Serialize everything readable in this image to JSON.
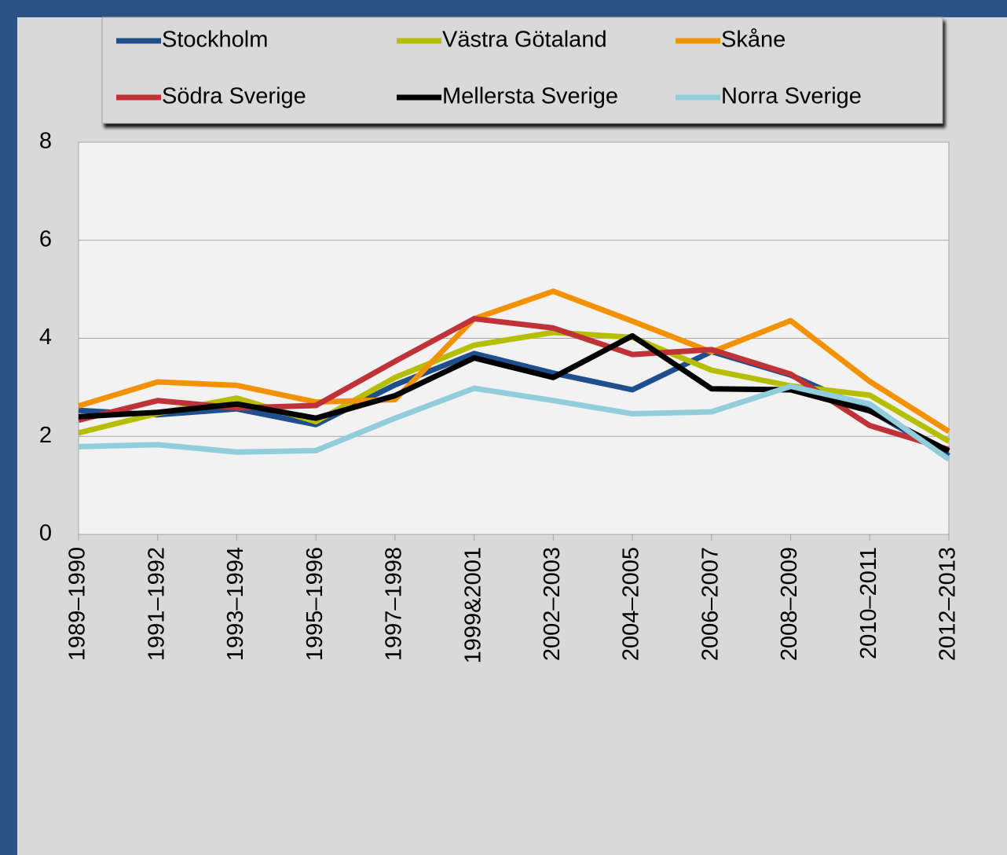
{
  "chart_data": {
    "type": "line",
    "categories": [
      "1989–1990",
      "1991–1992",
      "1993–1994",
      "1995–1996",
      "1997–1998",
      "1999&2001",
      "2002–2003",
      "2004–2005",
      "2006–2007",
      "2008–2009",
      "2010–2011",
      "2012–2013"
    ],
    "series": [
      {
        "name": "Stockholm",
        "color": "#1f4e8c",
        "values": [
          2.53,
          2.44,
          2.56,
          2.24,
          3.05,
          3.69,
          3.29,
          2.95,
          3.73,
          3.25,
          2.53,
          1.6
        ]
      },
      {
        "name": "Västra Götaland",
        "color": "#b5be00",
        "values": [
          2.07,
          2.47,
          2.78,
          2.3,
          3.2,
          3.86,
          4.12,
          4.02,
          3.35,
          3.03,
          2.84,
          1.9
        ]
      },
      {
        "name": "Skåne",
        "color": "#f39200",
        "values": [
          2.62,
          3.11,
          3.04,
          2.7,
          2.75,
          4.4,
          4.96,
          4.35,
          3.72,
          4.36,
          3.12,
          2.1
        ]
      },
      {
        "name": "Södra Sverige",
        "color": "#be3238",
        "values": [
          2.33,
          2.73,
          2.58,
          2.63,
          3.53,
          4.4,
          4.21,
          3.67,
          3.77,
          3.27,
          2.22,
          1.73
        ]
      },
      {
        "name": "Mellersta Sverige",
        "color": "#000000",
        "values": [
          2.4,
          2.49,
          2.66,
          2.37,
          2.83,
          3.6,
          3.2,
          4.05,
          2.97,
          2.95,
          2.52,
          1.7
        ]
      },
      {
        "name": "Norra Sverige",
        "color": "#92cddc",
        "values": [
          1.79,
          1.83,
          1.68,
          1.71,
          2.37,
          2.98,
          2.73,
          2.46,
          2.5,
          3.02,
          2.66,
          1.53
        ]
      }
    ],
    "ylim": [
      0,
      8
    ],
    "yticks": [
      0,
      2,
      4,
      6,
      8
    ],
    "grid": true
  }
}
